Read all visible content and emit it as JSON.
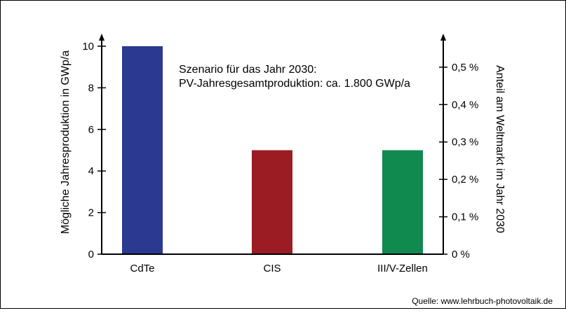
{
  "chart_data": {
    "type": "bar",
    "categories": [
      "CdTe",
      "CIS",
      "III/V-Zellen"
    ],
    "values": [
      10,
      5,
      5
    ],
    "colors": [
      "#2b3990",
      "#9b1d23",
      "#108a4e"
    ],
    "ylabel": "Mögliche Jahresproduktion in GWp/a",
    "ylim": [
      0,
      10
    ],
    "y_ticks": [
      0,
      2,
      4,
      6,
      8,
      10
    ],
    "ylabel_right": "Anteil am Weltmarkt im Jahr 2030",
    "y2_ticks": [
      {
        "value": 0,
        "label": "0 %"
      },
      {
        "value": 0.1,
        "label": "0,1 %"
      },
      {
        "value": 0.2,
        "label": "0,2 %"
      },
      {
        "value": 0.3,
        "label": "0,3 %"
      },
      {
        "value": 0.4,
        "label": "0,4 %"
      },
      {
        "value": 0.5,
        "label": "0,5 %"
      }
    ],
    "y2lim_per_y": 0.0556,
    "annotation": [
      "Szenario für das Jahr 2030:",
      "PV-Jahresgesamtproduktion: ca. 1.800 GWp/a"
    ],
    "grid": false,
    "legend": "none"
  },
  "source": "Quelle: www.lehrbuch-photovoltaik.de"
}
